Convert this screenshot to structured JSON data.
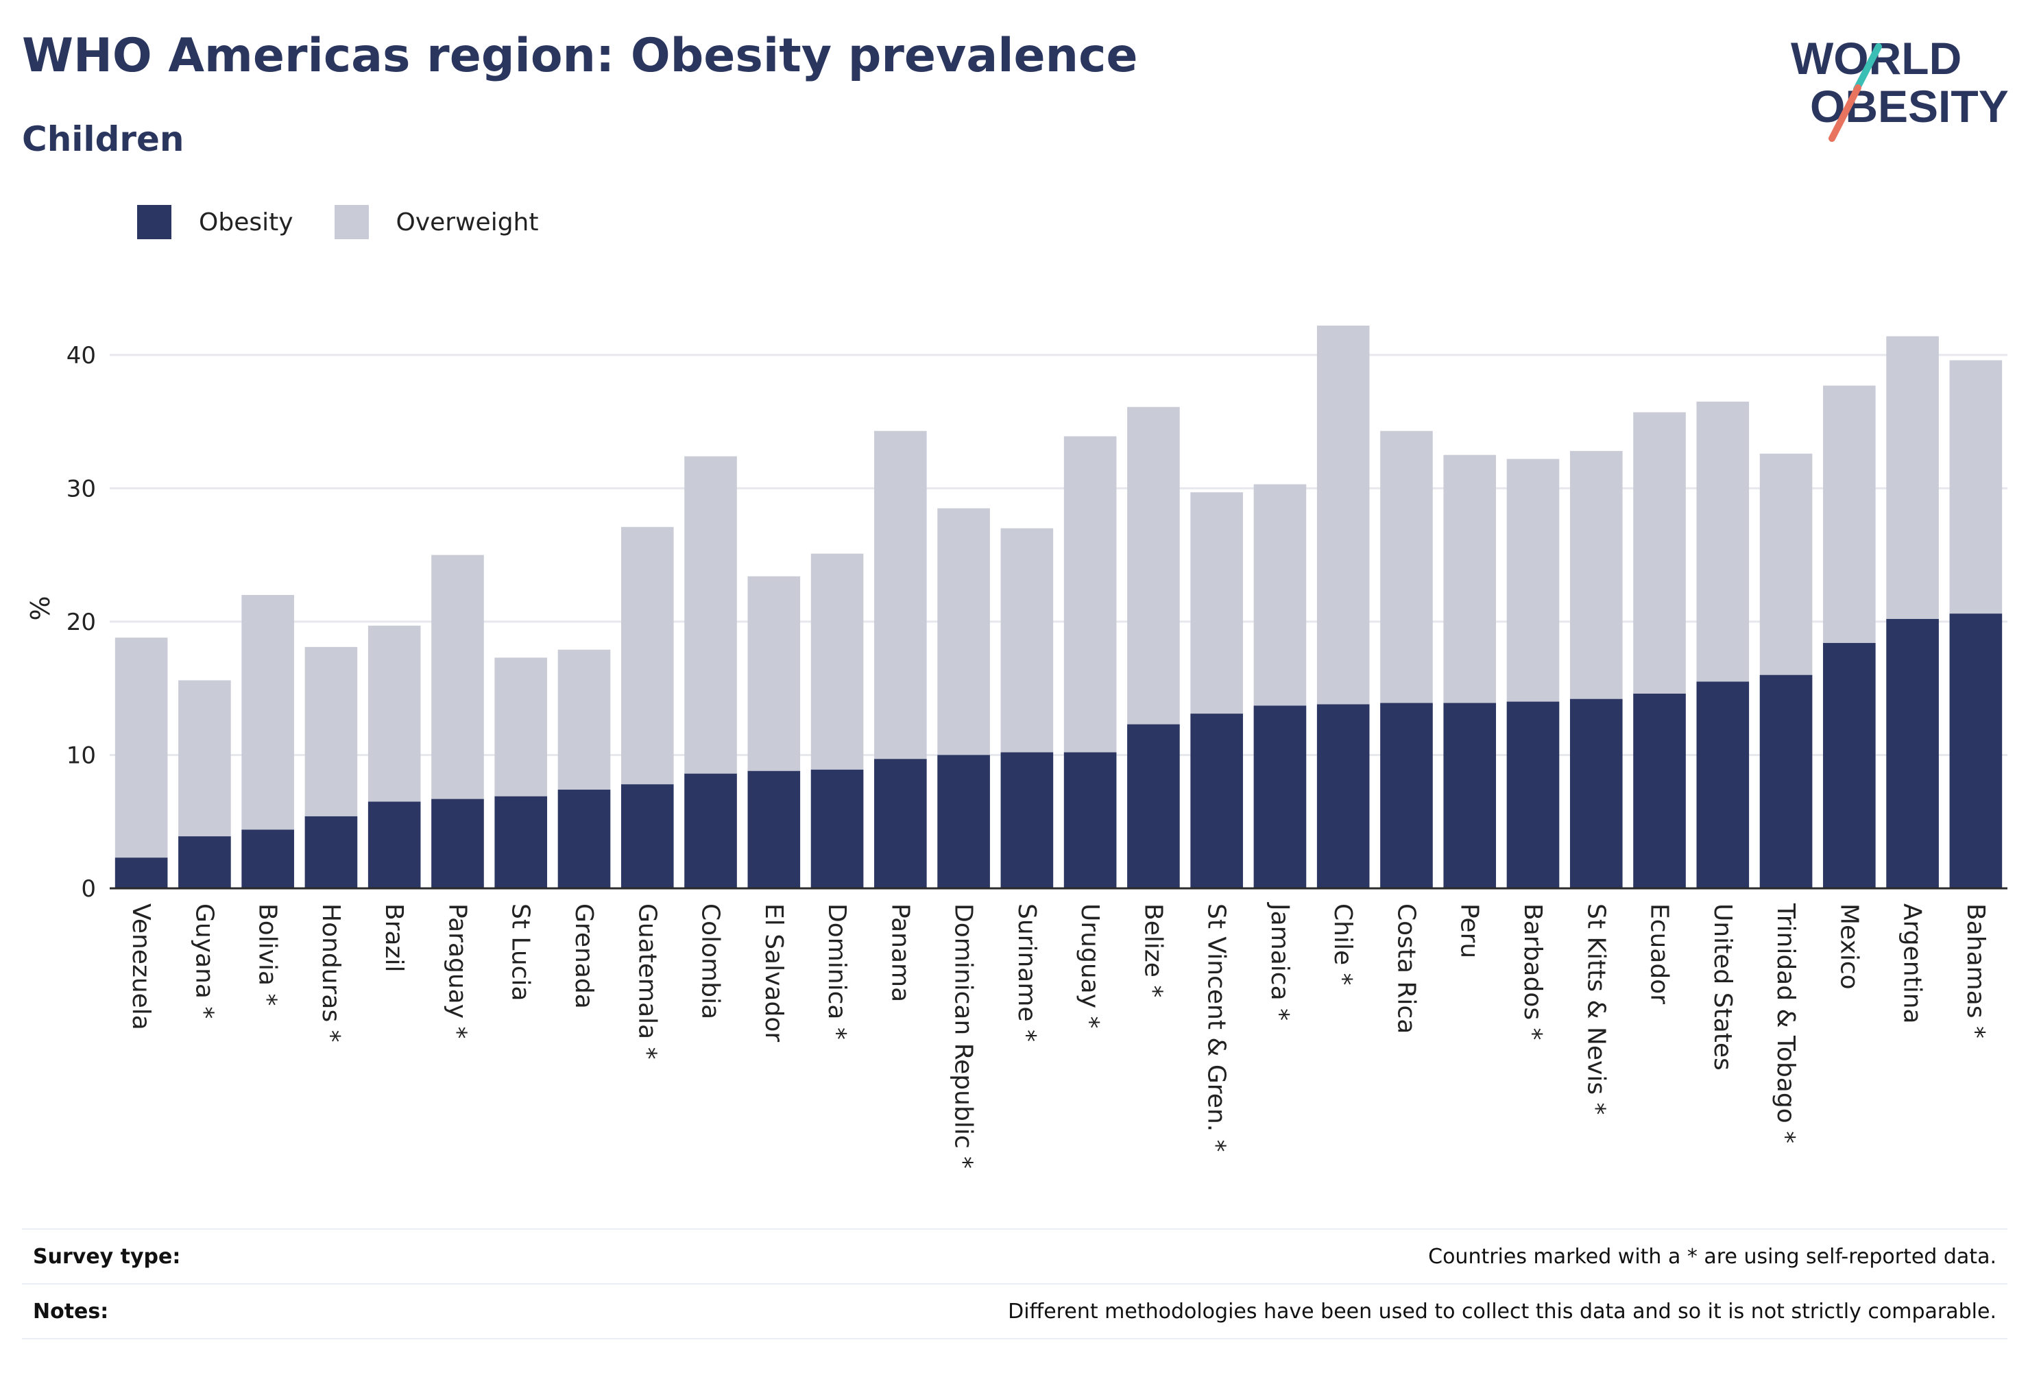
{
  "title": "WHO Americas region: Obesity prevalence",
  "subtitle": "Children",
  "logo": {
    "line1": "WORLD",
    "line2": "OBESITY",
    "accent_teal": "#3bbfb5",
    "accent_coral": "#e8735f"
  },
  "colors": {
    "obesity": "#2b3663",
    "overweight": "#c9cbd6",
    "grid": "#e6e8ee",
    "text": "#2b365f"
  },
  "legend": [
    {
      "label": "Obesity",
      "color": "#2b3663"
    },
    {
      "label": "Overweight",
      "color": "#c9cbd6"
    }
  ],
  "chart_data": {
    "type": "bar",
    "stacked": false,
    "ylabel": "%",
    "ylim": [
      0,
      44
    ],
    "yticks": [
      0,
      10,
      20,
      30,
      40
    ],
    "grid": true,
    "legend_position": "top-left",
    "categories": [
      "Venezuela",
      "Guyana *",
      "Bolivia *",
      "Honduras *",
      "Brazil",
      "Paraguay *",
      "St Lucia",
      "Grenada",
      "Guatemala *",
      "Colombia",
      "El Salvador",
      "Dominica *",
      "Panama",
      "Dominican Republic *",
      "Suriname *",
      "Uruguay *",
      "Belize *",
      "St Vincent & Gren. *",
      "Jamaica *",
      "Chile *",
      "Costa Rica",
      "Peru",
      "Barbados *",
      "St Kitts & Nevis *",
      "Ecuador",
      "United States",
      "Trinidad & Tobago *",
      "Mexico",
      "Argentina",
      "Bahamas *"
    ],
    "series": [
      {
        "name": "Overweight",
        "values": [
          18.8,
          15.6,
          22.0,
          18.1,
          19.7,
          25.0,
          17.3,
          17.9,
          27.1,
          32.4,
          23.4,
          25.1,
          34.3,
          28.5,
          27.0,
          33.9,
          36.1,
          29.7,
          30.3,
          42.2,
          34.3,
          32.5,
          32.2,
          32.8,
          35.7,
          36.5,
          32.6,
          37.7,
          41.4,
          39.6
        ]
      },
      {
        "name": "Obesity",
        "values": [
          2.3,
          3.9,
          4.4,
          5.4,
          6.5,
          6.7,
          6.9,
          7.4,
          7.8,
          8.6,
          8.8,
          8.9,
          9.7,
          10.0,
          10.2,
          10.2,
          12.3,
          13.1,
          13.7,
          13.8,
          13.9,
          13.9,
          14.0,
          14.2,
          14.6,
          15.5,
          16.0,
          18.4,
          20.2,
          20.6
        ]
      }
    ]
  },
  "footer": {
    "survey_label": "Survey type:",
    "survey_text": "Countries marked with a * are using self-reported data.",
    "notes_label": "Notes:",
    "notes_text": "Different methodologies have been used to collect this data and so it is not strictly comparable."
  }
}
